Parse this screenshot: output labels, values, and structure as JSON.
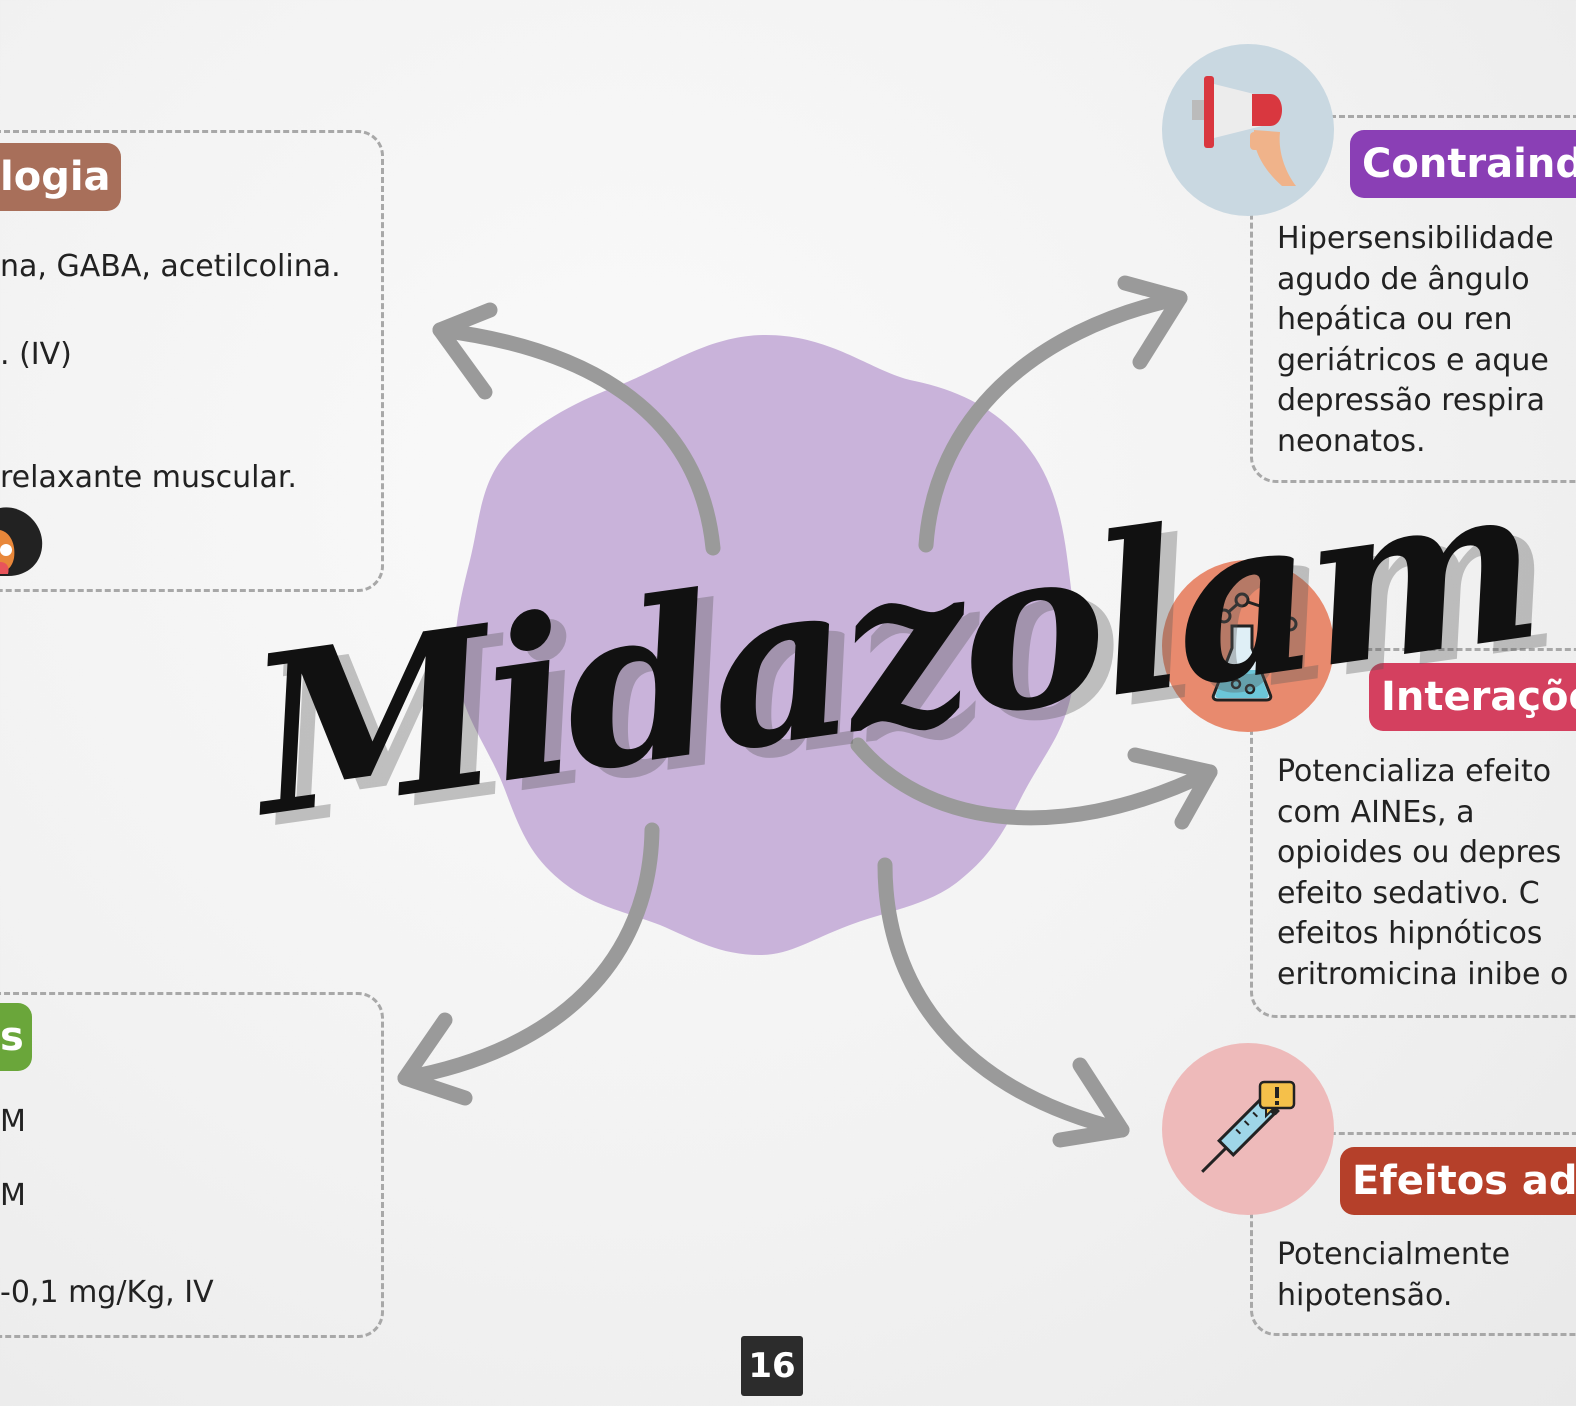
{
  "title": "Midazolam",
  "page_number": "16",
  "colors": {
    "blob": "#c9b3da",
    "arrow": "#9a9a9a",
    "farmacologia": "#a86f5a",
    "doses": "#6aa63a",
    "contraindicacoes": "#8a3fb5",
    "interacoes": "#d4405f",
    "efeitos_adversos": "#b5402a"
  },
  "left_top": {
    "heading": "logia",
    "lines": [
      "na, GABA, acetilcolina.",
      ". (IV)",
      " relaxante muscular."
    ],
    "icon": "dog-face-icon"
  },
  "left_bottom": {
    "heading": "s",
    "lines": [
      "M",
      "M",
      "-0,1 mg/Kg, IV"
    ]
  },
  "contraindicacoes": {
    "heading": "Contraind",
    "icon": "megaphone-icon",
    "lines": [
      "Hipersensibilidade",
      "agudo  de  ângulo",
      "hepática    ou    ren",
      "geriátricos  e  aque",
      "depressão    respira",
      "neonatos."
    ]
  },
  "interacoes": {
    "heading": "Interaçõe",
    "icon": "flask-molecule-icon",
    "lines": [
      "Potencializa  efeito",
      "com      AINEs,      a",
      "opioides ou depres",
      "efeito   sedativo.   C",
      "efeitos hipnóticos",
      "eritromicina inibe o"
    ]
  },
  "efeitos_adversos": {
    "heading": "Efeitos adv",
    "icon": "syringe-warning-icon",
    "lines": [
      "Potencialmente",
      "hipotensão."
    ]
  }
}
